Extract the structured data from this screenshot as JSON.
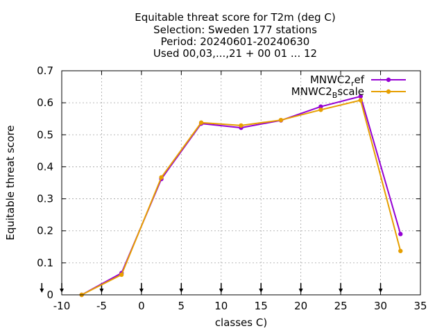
{
  "chart_data": {
    "type": "line",
    "title_lines": [
      "Equitable threat score  for T2m (deg C)",
      "Selection: Sweden    177 stations",
      "Period: 20240601-20240630",
      "Used 00,03,...,21 + 00 01 ... 12"
    ],
    "xlabel": "classes C)",
    "ylabel": "Equitable threat score",
    "xlim": [
      -10,
      35
    ],
    "ylim": [
      0,
      0.7
    ],
    "x_ticks": [
      -10,
      -5,
      0,
      5,
      10,
      15,
      20,
      25,
      30,
      35
    ],
    "y_ticks": [
      0,
      0.1,
      0.2,
      0.3,
      0.4,
      0.5,
      0.6,
      0.7
    ],
    "x_tick_labels": [
      "-10",
      "-5",
      "0",
      "5",
      "10",
      "15",
      "20",
      "25",
      "30",
      "35"
    ],
    "y_tick_labels": [
      "0",
      "0.1",
      "0.2",
      "0.3",
      "0.4",
      "0.5",
      "0.6",
      "0.7"
    ],
    "grid": true,
    "legend_position": "top-right",
    "class_markers_x": [
      -12.5,
      -10,
      -5,
      0,
      5,
      10,
      15,
      20,
      25,
      30
    ],
    "series": [
      {
        "name_base": "MNWC2",
        "name_sub": "r",
        "name_rest": "ef",
        "color": "#9400d3",
        "x": [
          -7.5,
          -2.5,
          2.5,
          7.5,
          12.5,
          17.5,
          22.5,
          27.5,
          32.5
        ],
        "values": [
          0.0,
          0.068,
          0.362,
          0.535,
          0.522,
          0.545,
          0.588,
          0.62,
          0.19
        ]
      },
      {
        "name_base": "MNWC2",
        "name_sub": "B",
        "name_rest": "scale",
        "color": "#e69f00",
        "x": [
          -7.5,
          -2.5,
          2.5,
          7.5,
          12.5,
          17.5,
          22.5,
          27.5,
          32.5
        ],
        "values": [
          0.0,
          0.063,
          0.367,
          0.538,
          0.529,
          0.546,
          0.578,
          0.608,
          0.137
        ]
      }
    ]
  }
}
